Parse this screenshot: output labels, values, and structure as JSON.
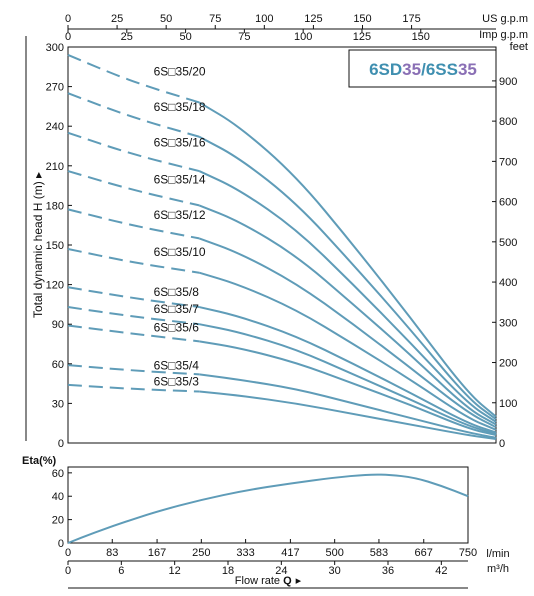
{
  "chart_data": [
    {
      "type": "line",
      "ylabel": "Total dynamic head H (m) ▸",
      "top_axis_label_1": "US g.p.m",
      "top_axis_label_2": "Imp g.p.m",
      "right_axis_label": "feet",
      "brand_part1": "6SD",
      "brand_num1": "35",
      "brand_slash": "/",
      "brand_part2": "6SS",
      "brand_num2": "35",
      "xlim": [
        0,
        750
      ],
      "ylim": [
        0,
        300
      ],
      "x_unit": "l/min",
      "x_ticks": [
        0,
        83,
        167,
        250,
        333,
        417,
        500,
        583,
        667,
        750
      ],
      "y_ticks": [
        0,
        30,
        60,
        90,
        120,
        150,
        180,
        210,
        240,
        270,
        300
      ],
      "us_gpm_ticks": [
        0,
        25,
        50,
        75,
        100,
        125,
        150,
        175
      ],
      "imp_gpm_ticks": [
        0,
        25,
        50,
        75,
        100,
        125,
        150
      ],
      "feet_ticks": [
        0,
        100,
        200,
        300,
        400,
        500,
        600,
        700,
        800,
        900
      ],
      "grid": false,
      "line_color": "#5f9cb8",
      "series": [
        {
          "name": "6S□35/20",
          "label_at": [
            150,
            277
          ],
          "dashed": [
            [
              0,
              294
            ],
            [
              110,
              274
            ],
            [
              230,
              258
            ]
          ],
          "solid": [
            [
              230,
              258
            ],
            [
              300,
              240
            ],
            [
              400,
              202
            ],
            [
              500,
              150
            ],
            [
              600,
              95
            ],
            [
              700,
              38
            ],
            [
              750,
              20
            ]
          ]
        },
        {
          "name": "6S□35/18",
          "label_at": [
            150,
            250
          ],
          "dashed": [
            [
              0,
              265
            ],
            [
              110,
              247
            ],
            [
              230,
              232
            ]
          ],
          "solid": [
            [
              230,
              232
            ],
            [
              300,
              216
            ],
            [
              400,
              182
            ],
            [
              500,
              135
            ],
            [
              600,
              86
            ],
            [
              700,
              34
            ],
            [
              750,
              18
            ]
          ]
        },
        {
          "name": "6S□35/16",
          "label_at": [
            150,
            223
          ],
          "dashed": [
            [
              0,
              235
            ],
            [
              110,
              219
            ],
            [
              230,
              206
            ]
          ],
          "solid": [
            [
              230,
              206
            ],
            [
              300,
              192
            ],
            [
              400,
              162
            ],
            [
              500,
              120
            ],
            [
              600,
              76
            ],
            [
              700,
              30
            ],
            [
              750,
              16
            ]
          ]
        },
        {
          "name": "6S□35/14",
          "label_at": [
            150,
            195
          ],
          "dashed": [
            [
              0,
              206
            ],
            [
              110,
              192
            ],
            [
              230,
              180
            ]
          ],
          "solid": [
            [
              230,
              180
            ],
            [
              300,
              168
            ],
            [
              400,
              142
            ],
            [
              500,
              105
            ],
            [
              600,
              67
            ],
            [
              700,
              26
            ],
            [
              750,
              14
            ]
          ]
        },
        {
          "name": "6S□35/12",
          "label_at": [
            150,
            168
          ],
          "dashed": [
            [
              0,
              177
            ],
            [
              110,
              165
            ],
            [
              230,
              155
            ]
          ],
          "solid": [
            [
              230,
              155
            ],
            [
              300,
              144
            ],
            [
              400,
              121
            ],
            [
              500,
              90
            ],
            [
              600,
              57
            ],
            [
              700,
              23
            ],
            [
              750,
              12
            ]
          ]
        },
        {
          "name": "6S□35/10",
          "label_at": [
            150,
            140
          ],
          "dashed": [
            [
              0,
              147
            ],
            [
              110,
              137
            ],
            [
              230,
              129
            ]
          ],
          "solid": [
            [
              230,
              129
            ],
            [
              300,
              120
            ],
            [
              400,
              101
            ],
            [
              500,
              75
            ],
            [
              600,
              48
            ],
            [
              700,
              19
            ],
            [
              750,
              10
            ]
          ]
        },
        {
          "name": "6S□35/8",
          "label_at": [
            150,
            110
          ],
          "dashed": [
            [
              0,
              118
            ],
            [
              110,
              110
            ],
            [
              230,
              103
            ]
          ],
          "solid": [
            [
              230,
              103
            ],
            [
              300,
              96
            ],
            [
              400,
              81
            ],
            [
              500,
              60
            ],
            [
              600,
              38
            ],
            [
              700,
              15
            ],
            [
              750,
              8
            ]
          ]
        },
        {
          "name": "6S□35/7",
          "label_at": [
            150,
            97
          ],
          "dashed": [
            [
              0,
              103
            ],
            [
              110,
              96
            ],
            [
              230,
              90
            ]
          ],
          "solid": [
            [
              230,
              90
            ],
            [
              300,
              84
            ],
            [
              400,
              71
            ],
            [
              500,
              52
            ],
            [
              600,
              33
            ],
            [
              700,
              13
            ],
            [
              750,
              7
            ]
          ]
        },
        {
          "name": "6S□35/6",
          "label_at": [
            150,
            83
          ],
          "dashed": [
            [
              0,
              89
            ],
            [
              110,
              83
            ],
            [
              230,
              77
            ]
          ],
          "solid": [
            [
              230,
              77
            ],
            [
              300,
              72
            ],
            [
              400,
              61
            ],
            [
              500,
              45
            ],
            [
              600,
              29
            ],
            [
              700,
              11
            ],
            [
              750,
              6
            ]
          ]
        },
        {
          "name": "6S□35/4",
          "label_at": [
            150,
            54
          ],
          "dashed": [
            [
              0,
              59
            ],
            [
              110,
              55
            ],
            [
              230,
              52
            ]
          ],
          "solid": [
            [
              230,
              52
            ],
            [
              300,
              48
            ],
            [
              400,
              41
            ],
            [
              500,
              30
            ],
            [
              600,
              19
            ],
            [
              700,
              8
            ],
            [
              750,
              4
            ]
          ]
        },
        {
          "name": "6S□35/3",
          "label_at": [
            150,
            42
          ],
          "dashed": [
            [
              0,
              44
            ],
            [
              110,
              41
            ],
            [
              230,
              39
            ]
          ],
          "solid": [
            [
              230,
              39
            ],
            [
              300,
              36
            ],
            [
              400,
              30
            ],
            [
              500,
              22
            ],
            [
              600,
              14
            ],
            [
              700,
              6
            ],
            [
              750,
              3
            ]
          ]
        }
      ]
    },
    {
      "type": "line",
      "ylabel": "Eta(%)",
      "xlim": [
        0,
        750
      ],
      "ylim": [
        0,
        65
      ],
      "y_ticks": [
        0,
        20,
        40,
        60
      ],
      "x_ticks": [
        0,
        83,
        167,
        250,
        333,
        417,
        500,
        583,
        667,
        750
      ],
      "x_unit": "l/min",
      "x2_ticks": [
        0,
        6,
        12,
        18,
        24,
        30,
        36,
        42
      ],
      "x2_unit": "m³/h",
      "xlabel_text": "Flow  rate ",
      "xlabel_symbol": "Q",
      "xlabel_arrow": "▸",
      "series": [
        {
          "name": "",
          "x": [
            0,
            50,
            100,
            167,
            250,
            333,
            417,
            500,
            560,
            600,
            650,
            700,
            750
          ],
          "y": [
            0,
            9,
            17,
            27,
            37,
            45,
            51,
            56,
            58.5,
            58.5,
            56,
            49,
            40
          ]
        }
      ]
    }
  ]
}
